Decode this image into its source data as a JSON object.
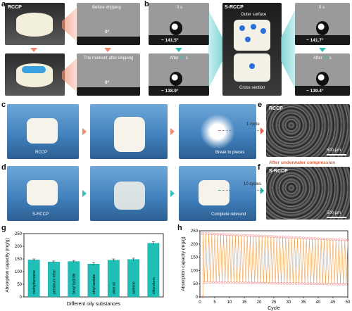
{
  "panels": {
    "a": {
      "letter": "a",
      "tag": "RCCP",
      "top_caption": "Before dripping",
      "top_angle": "0°",
      "bottom_caption": "The moment after dripping",
      "bottom_angle": "0°"
    },
    "b": {
      "letter": "b",
      "left_top_time": "0 s",
      "left_top_angle": "~ 141.5°",
      "left_bottom_time_prefix": "After ",
      "left_bottom_time_num": "10",
      "left_bottom_time_suffix": " s",
      "left_bottom_angle": "~ 138.9°",
      "center_tag": "S-RCCP",
      "outer_surface": "Outer surface",
      "cross_section": "Cross section",
      "right_top_time": "0 s",
      "right_top_angle": "~ 141.7°",
      "right_bottom_time_prefix": "After ",
      "right_bottom_time_num": "10",
      "right_bottom_time_suffix": " s",
      "right_bottom_angle": "~ 139.4°"
    },
    "c": {
      "letter": "c",
      "label1": "RCCP",
      "label3": "Break to pieces",
      "cycle": "1 cycle"
    },
    "d": {
      "letter": "d",
      "label1": "S-RCCP",
      "label3": "Complete rebound",
      "cycle": "10 cycles"
    },
    "e": {
      "letter": "e",
      "tag": "RCCP",
      "scale": "500 μm"
    },
    "f": {
      "letter": "f",
      "tag": "S-RCCP",
      "scale": "500 μm"
    },
    "middle_caption": "After underwater compression",
    "g": {
      "letter": "g"
    },
    "h": {
      "letter": "h"
    }
  },
  "chart_data": [
    {
      "type": "bar",
      "categories": [
        "methylbenzene",
        "petroleum ether",
        "hexyl hydride",
        "ethyl acetate",
        "olive oil",
        "acetone",
        "chloroform"
      ],
      "values": [
        146,
        138,
        140,
        130,
        145,
        148,
        212
      ],
      "errors": [
        4,
        4,
        4,
        5,
        5,
        5,
        6
      ],
      "xlabel": "Different oily substances",
      "ylabel": "Absorption capacity (mg/g)",
      "ylim": [
        0,
        250
      ],
      "yticks": [
        0,
        50,
        100,
        150,
        200,
        250
      ],
      "bar_color": "#1fbfb8"
    },
    {
      "type": "line",
      "xlabel": "Cycle",
      "ylabel": "Absorption capacity (mg/g)",
      "xlim": [
        0,
        50
      ],
      "ylim": [
        0,
        250
      ],
      "xticks": [
        0,
        5,
        10,
        15,
        20,
        25,
        30,
        35,
        40,
        45,
        50
      ],
      "yticks": [
        0,
        50,
        100,
        150,
        200,
        250
      ],
      "cycles": 50,
      "absorbed_start": 240,
      "absorbed_end": 215,
      "squeezed_start": 55,
      "squeezed_end": 48,
      "first_point": 0,
      "line_color": "#f1a04c",
      "marker_color": "#e8707a"
    }
  ]
}
